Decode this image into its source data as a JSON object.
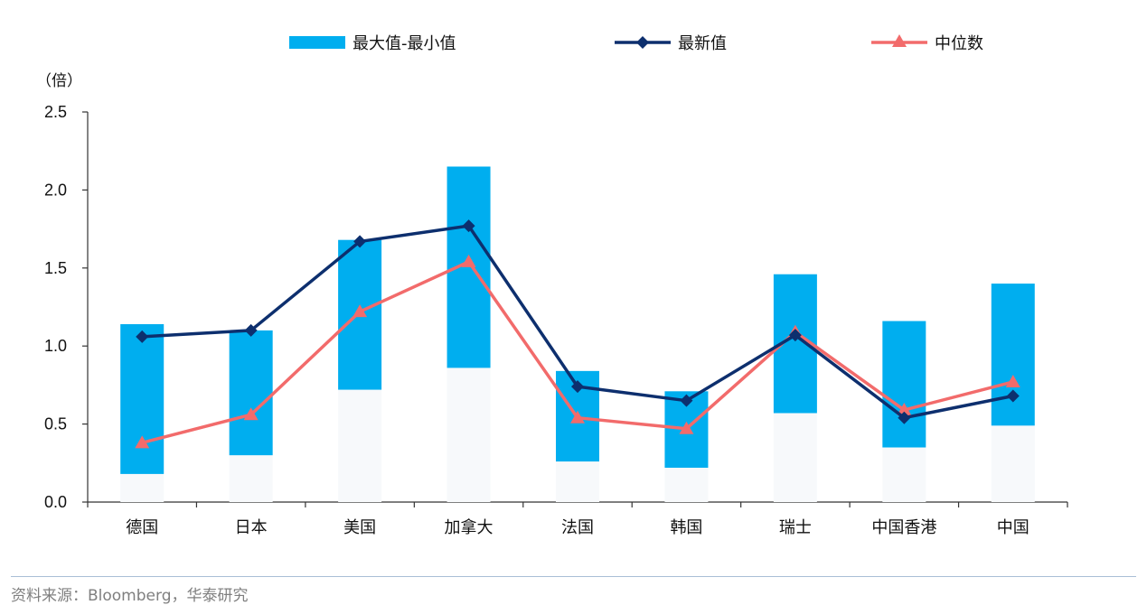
{
  "chart_data": {
    "type": "bar",
    "unit_label": "（倍）",
    "categories": [
      "德国",
      "日本",
      "美国",
      "加拿大",
      "法国",
      "韩国",
      "瑞士",
      "中国香港",
      "中国"
    ],
    "ylim": [
      0,
      2.5
    ],
    "yticks": [
      "0.0",
      "0.5",
      "1.0",
      "1.5",
      "2.0",
      "2.5"
    ],
    "ytick_values": [
      0,
      0.5,
      1.0,
      1.5,
      2.0,
      2.5
    ],
    "legend_position": "top",
    "grid": false,
    "series": [
      {
        "name": "最大值-最小值",
        "kind": "floating-bar",
        "color": "#00aeef",
        "min": [
          0.18,
          0.3,
          0.72,
          0.86,
          0.26,
          0.22,
          0.57,
          0.35,
          0.49
        ],
        "max": [
          1.14,
          1.1,
          1.68,
          2.15,
          0.84,
          0.71,
          1.46,
          1.16,
          1.4
        ]
      },
      {
        "name": "最新值",
        "kind": "line",
        "marker": "diamond",
        "color": "#0d2f6e",
        "values": [
          1.06,
          1.1,
          1.67,
          1.77,
          0.74,
          0.65,
          1.07,
          0.54,
          0.68
        ]
      },
      {
        "name": "中位数",
        "kind": "line",
        "marker": "triangle",
        "color": "#f26b6b",
        "values": [
          0.38,
          0.56,
          1.22,
          1.54,
          0.54,
          0.47,
          1.09,
          0.59,
          0.77
        ]
      }
    ]
  },
  "source": "资料来源：Bloomberg，华泰研究"
}
